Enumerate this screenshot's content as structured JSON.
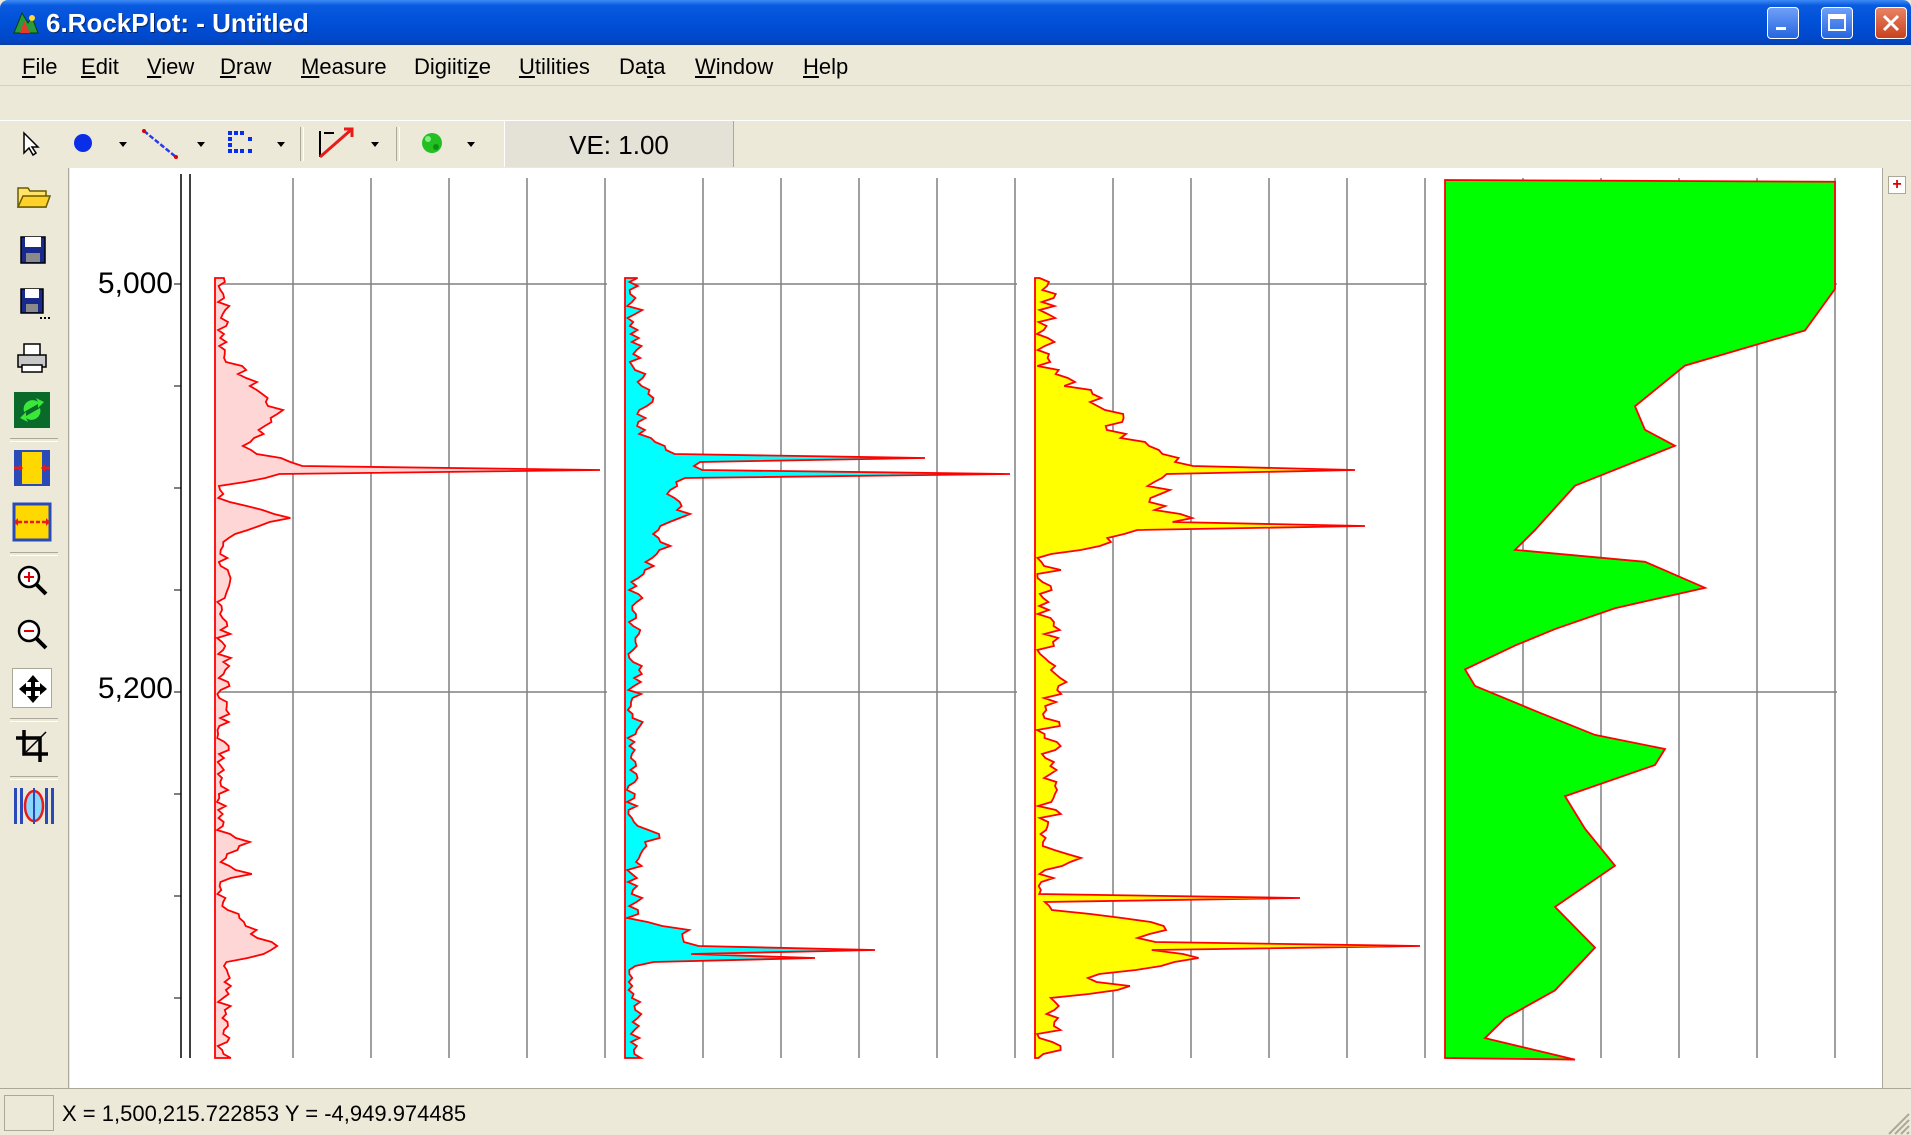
{
  "window": {
    "title": "6.RockPlot: - Untitled",
    "buttons": [
      "minimize",
      "maximize",
      "close"
    ]
  },
  "menu": {
    "items": [
      {
        "label": "File",
        "mnemonic": "F"
      },
      {
        "label": "Edit",
        "mnemonic": "E"
      },
      {
        "label": "View",
        "mnemonic": "V"
      },
      {
        "label": "Draw",
        "mnemonic": "D"
      },
      {
        "label": "Measure",
        "mnemonic": "M"
      },
      {
        "label": "Digiitize",
        "mnemonic": "z"
      },
      {
        "label": "Utilities",
        "mnemonic": "U"
      },
      {
        "label": "Data",
        "mnemonic": "t"
      },
      {
        "label": "Window",
        "mnemonic": "W"
      },
      {
        "label": "Help",
        "mnemonic": "H"
      }
    ]
  },
  "toolbar": {
    "tools": [
      "select-arrow-icon",
      "point-icon",
      "line-icon",
      "grid-points-icon",
      "draw-pen-icon",
      "color-fill-icon"
    ],
    "ve_label": "VE: 1.00"
  },
  "left_toolbar": {
    "tools": [
      "open-folder-icon",
      "save-icon",
      "save-as-icon",
      "print-icon",
      "refresh-icon",
      "fit-width-icon",
      "fit-page-icon",
      "zoom-in-icon",
      "zoom-out-icon",
      "pan-icon",
      "crop-icon",
      "borehole-icon"
    ],
    "active": "pan-icon"
  },
  "plot": {
    "depth_labels": [
      "5,000",
      "5,200"
    ],
    "track_fill_colors": [
      "#ffd6d6",
      "#00ffff",
      "#ffff00",
      "#00ff00"
    ],
    "curve_color": "#ff0000",
    "grid_color": "#808080"
  },
  "right_strip": {
    "button_label": "+"
  },
  "status": {
    "coords_text": "X = 1,500,215.722853  Y = -4,949.974485"
  }
}
